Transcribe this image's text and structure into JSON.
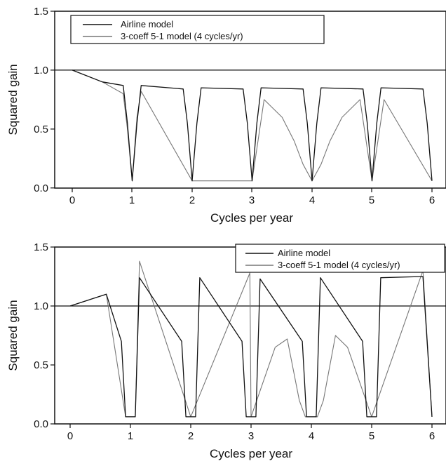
{
  "chart_data": [
    {
      "type": "line",
      "title": "",
      "xlabel": "Cycles per year",
      "ylabel": "Squared gain",
      "xlim": [
        -0.2,
        6.1
      ],
      "ylim": [
        0,
        1.5
      ],
      "xticks": [
        "0",
        "1",
        "2",
        "3",
        "4",
        "5",
        "6"
      ],
      "yticks": [
        "0.0",
        "0.5",
        "1.0",
        "1.5"
      ],
      "reference_line": 1.0,
      "legend_position": "top-left",
      "series": [
        {
          "name": "Airline model",
          "color": "#111111",
          "points": [
            [
              0.0,
              1.0
            ],
            [
              0.5,
              0.9
            ],
            [
              0.85,
              0.87
            ],
            [
              0.92,
              0.55
            ],
            [
              1.0,
              0.06
            ],
            [
              1.08,
              0.55
            ],
            [
              1.15,
              0.87
            ],
            [
              1.85,
              0.84
            ],
            [
              1.92,
              0.55
            ],
            [
              2.0,
              0.06
            ],
            [
              2.08,
              0.55
            ],
            [
              2.15,
              0.85
            ],
            [
              2.85,
              0.84
            ],
            [
              2.92,
              0.55
            ],
            [
              3.0,
              0.06
            ],
            [
              3.08,
              0.55
            ],
            [
              3.15,
              0.85
            ],
            [
              3.85,
              0.84
            ],
            [
              3.92,
              0.55
            ],
            [
              4.0,
              0.06
            ],
            [
              4.08,
              0.55
            ],
            [
              4.15,
              0.85
            ],
            [
              4.85,
              0.84
            ],
            [
              4.92,
              0.55
            ],
            [
              5.0,
              0.06
            ],
            [
              5.08,
              0.55
            ],
            [
              5.15,
              0.85
            ],
            [
              5.85,
              0.84
            ],
            [
              5.92,
              0.55
            ],
            [
              6.0,
              0.06
            ]
          ]
        },
        {
          "name": "3-coeff 5-1 model (4 cycles/yr)",
          "color": "#777777",
          "points": [
            [
              0.0,
              1.0
            ],
            [
              0.5,
              0.9
            ],
            [
              0.85,
              0.8
            ],
            [
              0.92,
              0.5
            ],
            [
              1.0,
              0.06
            ],
            [
              1.08,
              0.6
            ],
            [
              1.15,
              0.82
            ],
            [
              2.0,
              0.06
            ],
            [
              3.0,
              0.06
            ],
            [
              3.2,
              0.75
            ],
            [
              3.5,
              0.6
            ],
            [
              3.7,
              0.4
            ],
            [
              3.85,
              0.2
            ],
            [
              4.0,
              0.06
            ],
            [
              4.15,
              0.2
            ],
            [
              4.3,
              0.4
            ],
            [
              4.5,
              0.6
            ],
            [
              4.8,
              0.75
            ],
            [
              5.0,
              0.06
            ],
            [
              5.2,
              0.75
            ],
            [
              6.0,
              0.06
            ]
          ]
        }
      ]
    },
    {
      "type": "line",
      "title": "",
      "xlabel": "Cycles per year",
      "ylabel": "Squared gain",
      "xlim": [
        -0.2,
        6.1
      ],
      "ylim": [
        0,
        1.5
      ],
      "xticks": [
        "0",
        "1",
        "2",
        "3",
        "4",
        "5",
        "6"
      ],
      "yticks": [
        "0.0",
        "0.5",
        "1.0",
        "1.5"
      ],
      "reference_line": 1.0,
      "legend_position": "top-right",
      "series": [
        {
          "name": "Airline model",
          "color": "#111111",
          "points": [
            [
              0.0,
              1.0
            ],
            [
              0.6,
              1.1
            ],
            [
              0.85,
              0.7
            ],
            [
              0.92,
              0.06
            ],
            [
              1.08,
              0.06
            ],
            [
              1.15,
              1.24
            ],
            [
              1.85,
              0.7
            ],
            [
              1.92,
              0.06
            ],
            [
              2.08,
              0.06
            ],
            [
              2.15,
              1.24
            ],
            [
              2.85,
              0.7
            ],
            [
              2.92,
              0.06
            ],
            [
              3.08,
              0.06
            ],
            [
              3.15,
              1.23
            ],
            [
              3.85,
              0.7
            ],
            [
              3.92,
              0.06
            ],
            [
              4.08,
              0.06
            ],
            [
              4.15,
              1.24
            ],
            [
              4.85,
              0.7
            ],
            [
              4.92,
              0.06
            ],
            [
              5.08,
              0.06
            ],
            [
              5.15,
              1.24
            ],
            [
              5.85,
              1.25
            ],
            [
              6.0,
              0.06
            ]
          ]
        },
        {
          "name": "3-coeff 5-1 model (4 cycles/yr)",
          "color": "#777777",
          "points": [
            [
              0.0,
              1.0
            ],
            [
              0.6,
              1.1
            ],
            [
              0.92,
              0.06
            ],
            [
              1.08,
              0.06
            ],
            [
              1.15,
              1.38
            ],
            [
              2.0,
              0.06
            ],
            [
              2.98,
              1.28
            ],
            [
              3.0,
              0.06
            ],
            [
              3.4,
              0.65
            ],
            [
              3.6,
              0.72
            ],
            [
              3.8,
              0.2
            ],
            [
              3.9,
              0.06
            ],
            [
              4.1,
              0.06
            ],
            [
              4.2,
              0.2
            ],
            [
              4.4,
              0.75
            ],
            [
              4.6,
              0.65
            ],
            [
              5.0,
              0.06
            ],
            [
              5.85,
              1.3
            ],
            [
              6.0,
              0.06
            ]
          ]
        }
      ]
    }
  ]
}
